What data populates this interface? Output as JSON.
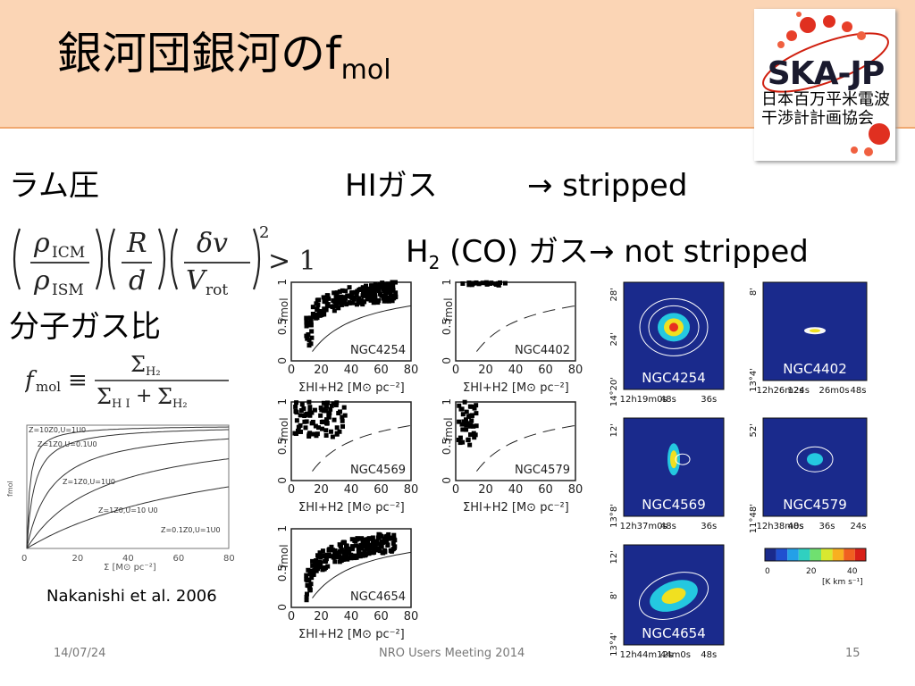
{
  "slide": {
    "title": "銀河団銀河のf",
    "title_sub": "mol",
    "logo": {
      "name": "SKA-JP",
      "line1": "日本百万平米電波",
      "line2": "干渉計計画協会"
    },
    "ram_label": "ラム圧",
    "hi_label": "HIガス",
    "hi_result": "→ stripped",
    "h2_prefix": "H",
    "h2_sub": "2",
    "h2_suffix": " (CO) ガス→ not stripped",
    "fmol_label": "分子ガス比",
    "citation": "Nakanishi et al. 2006",
    "footer": {
      "date": "14/07/24",
      "event": "NRO Users Meeting 2014",
      "page": "15"
    }
  },
  "chart_data": [
    {
      "type": "line",
      "xlabel": "Σ [M⊙ pc⁻²]",
      "ylabel": "fmol",
      "xlim": [
        0,
        80
      ],
      "ylim": [
        0,
        1
      ],
      "xticks": [
        0,
        20,
        40,
        60,
        80
      ],
      "series_labels": [
        "Z=10Z0,U=1U0",
        "Z=1Z0,U=0.1U0",
        "Z=1Z0,U=1U0",
        "Z=1Z0,U=10 U0",
        "Z=0.1Z0,U=1U0"
      ]
    },
    {
      "type": "scatter",
      "label": "NGC4254",
      "xlabel": "ΣHI+H2 [M⊙ pc⁻²]",
      "ylabel": "fmol",
      "xticks": [
        0,
        20,
        40,
        60,
        80
      ],
      "yticks": [
        0,
        0.5,
        1
      ]
    },
    {
      "type": "scatter",
      "label": "NGC4402",
      "xlabel": "ΣHI+H2 [M⊙ pc⁻²]",
      "ylabel": "fmol",
      "xticks": [
        0,
        20,
        40,
        60,
        80
      ],
      "yticks": [
        0,
        0.5,
        1
      ]
    },
    {
      "type": "scatter",
      "label": "NGC4569",
      "xlabel": "ΣHI+H2 [M⊙ pc⁻²]",
      "ylabel": "fmol",
      "xticks": [
        0,
        20,
        40,
        60,
        80
      ],
      "yticks": [
        0,
        0.5,
        1
      ]
    },
    {
      "type": "scatter",
      "label": "NGC4579",
      "xlabel": "ΣHI+H2 [M⊙ pc⁻²]",
      "ylabel": "fmol",
      "xticks": [
        0,
        20,
        40,
        60,
        80
      ],
      "yticks": [
        0,
        0.5,
        1
      ]
    },
    {
      "type": "scatter",
      "label": "NGC4654",
      "xlabel": "ΣHI+H2 [M⊙ pc⁻²]",
      "ylabel": "fmol",
      "xticks": [
        0,
        20,
        40,
        60,
        80
      ],
      "yticks": [
        0,
        0.5,
        1
      ]
    },
    {
      "type": "heatmap",
      "maps": [
        {
          "label": "NGC4254",
          "xticks": [
            "12h19m0s",
            "48s",
            "36s"
          ],
          "yticks": [
            "14°20'",
            "24'",
            "28'"
          ]
        },
        {
          "label": "NGC4402",
          "xticks": [
            "12h26m24s",
            "12s",
            "26m0s",
            "48s"
          ],
          "yticks": [
            "13°4'",
            "8'"
          ]
        },
        {
          "label": "NGC4569",
          "xticks": [
            "12h37m0s",
            "48s",
            "36s"
          ],
          "yticks": [
            "13°8'",
            "12'"
          ]
        },
        {
          "label": "NGC4579",
          "xticks": [
            "12h38m0s",
            "48s",
            "36s",
            "24s"
          ],
          "yticks": [
            "11°48'",
            "52'"
          ]
        },
        {
          "label": "NGC4654",
          "xticks": [
            "12h44m12s",
            "44m0s",
            "48s"
          ],
          "yticks": [
            "13°4'",
            "8'",
            "12'"
          ]
        }
      ],
      "colorbar": {
        "ticks": [
          "0",
          "20",
          "40"
        ],
        "unit": "[K km s⁻¹]"
      }
    }
  ]
}
